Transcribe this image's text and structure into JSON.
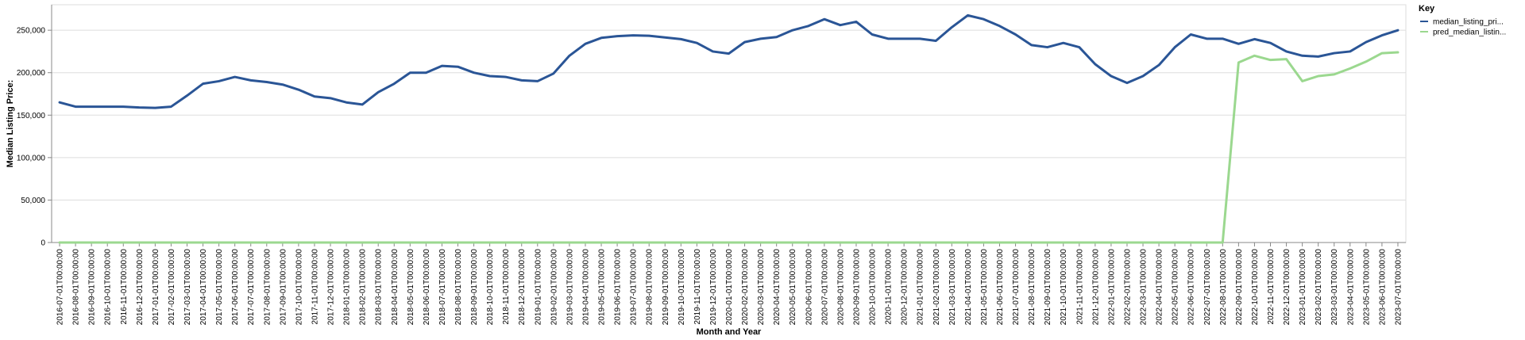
{
  "chart_data": {
    "type": "line",
    "xlabel": "Month and Year",
    "ylabel": "Median Listing Price:",
    "ylim": [
      0,
      280000
    ],
    "yticks": [
      0,
      50000,
      100000,
      150000,
      200000,
      250000
    ],
    "ytick_labels": [
      "0",
      "50,000",
      "100,000",
      "150,000",
      "200,000",
      "250,000"
    ],
    "grid": true,
    "legend": {
      "title": "Key",
      "position": "top-right"
    },
    "x": [
      "2016-07-01T00:00:00",
      "2016-08-01T00:00:00",
      "2016-09-01T00:00:00",
      "2016-10-01T00:00:00",
      "2016-11-01T00:00:00",
      "2016-12-01T00:00:00",
      "2017-01-01T00:00:00",
      "2017-02-01T00:00:00",
      "2017-03-01T00:00:00",
      "2017-04-01T00:00:00",
      "2017-05-01T00:00:00",
      "2017-06-01T00:00:00",
      "2017-07-01T00:00:00",
      "2017-08-01T00:00:00",
      "2017-09-01T00:00:00",
      "2017-10-01T00:00:00",
      "2017-11-01T00:00:00",
      "2017-12-01T00:00:00",
      "2018-01-01T00:00:00",
      "2018-02-01T00:00:00",
      "2018-03-01T00:00:00",
      "2018-04-01T00:00:00",
      "2018-05-01T00:00:00",
      "2018-06-01T00:00:00",
      "2018-07-01T00:00:00",
      "2018-08-01T00:00:00",
      "2018-09-01T00:00:00",
      "2018-10-01T00:00:00",
      "2018-11-01T00:00:00",
      "2018-12-01T00:00:00",
      "2019-01-01T00:00:00",
      "2019-02-01T00:00:00",
      "2019-03-01T00:00:00",
      "2019-04-01T00:00:00",
      "2019-05-01T00:00:00",
      "2019-06-01T00:00:00",
      "2019-07-01T00:00:00",
      "2019-08-01T00:00:00",
      "2019-09-01T00:00:00",
      "2019-10-01T00:00:00",
      "2019-11-01T00:00:00",
      "2019-12-01T00:00:00",
      "2020-01-01T00:00:00",
      "2020-02-01T00:00:00",
      "2020-03-01T00:00:00",
      "2020-04-01T00:00:00",
      "2020-05-01T00:00:00",
      "2020-06-01T00:00:00",
      "2020-07-01T00:00:00",
      "2020-08-01T00:00:00",
      "2020-09-01T00:00:00",
      "2020-10-01T00:00:00",
      "2020-11-01T00:00:00",
      "2020-12-01T00:00:00",
      "2021-01-01T00:00:00",
      "2021-02-01T00:00:00",
      "2021-03-01T00:00:00",
      "2021-04-01T00:00:00",
      "2021-05-01T00:00:00",
      "2021-06-01T00:00:00",
      "2021-07-01T00:00:00",
      "2021-08-01T00:00:00",
      "2021-09-01T00:00:00",
      "2021-10-01T00:00:00",
      "2021-11-01T00:00:00",
      "2021-12-01T00:00:00",
      "2022-01-01T00:00:00",
      "2022-02-01T00:00:00",
      "2022-03-01T00:00:00",
      "2022-04-01T00:00:00",
      "2022-05-01T00:00:00",
      "2022-06-01T00:00:00",
      "2022-07-01T00:00:00",
      "2022-08-01T00:00:00",
      "2022-09-01T00:00:00",
      "2022-10-01T00:00:00",
      "2022-11-01T00:00:00",
      "2022-12-01T00:00:00",
      "2023-01-01T00:00:00",
      "2023-02-01T00:00:00",
      "2023-03-01T00:00:00",
      "2023-04-01T00:00:00",
      "2023-05-01T00:00:00",
      "2023-06-01T00:00:00",
      "2023-07-01T00:00:00"
    ],
    "series": [
      {
        "name": "median_listing_pri...",
        "color": "#2a5596",
        "values": [
          165000,
          160000,
          160000,
          160000,
          160000,
          159000,
          158500,
          160000,
          173000,
          187000,
          190000,
          195000,
          191000,
          189000,
          186000,
          180000,
          172000,
          170000,
          165000,
          162500,
          177000,
          187000,
          200000,
          200000,
          208000,
          207000,
          200000,
          196000,
          195000,
          191000,
          190000,
          199000,
          220000,
          234000,
          241000,
          243000,
          244000,
          243500,
          241500,
          239500,
          235000,
          225000,
          222500,
          236000,
          240000,
          242000,
          250000,
          255000,
          263000,
          256000,
          260000,
          245000,
          240000,
          240000,
          240000,
          237500,
          253500,
          267500,
          263000,
          255000,
          245000,
          232500,
          230000,
          235000,
          230000,
          210000,
          196000,
          188000,
          196000,
          209000,
          230000,
          245000,
          240000,
          240000,
          234000,
          239500,
          235000,
          225000,
          220000,
          219000,
          223000,
          225000,
          236000,
          244000,
          250000
        ]
      },
      {
        "name": "pred_median_listin...",
        "color": "#9bd88f",
        "values": [
          0,
          0,
          0,
          0,
          0,
          0,
          0,
          0,
          0,
          0,
          0,
          0,
          0,
          0,
          0,
          0,
          0,
          0,
          0,
          0,
          0,
          0,
          0,
          0,
          0,
          0,
          0,
          0,
          0,
          0,
          0,
          0,
          0,
          0,
          0,
          0,
          0,
          0,
          0,
          0,
          0,
          0,
          0,
          0,
          0,
          0,
          0,
          0,
          0,
          0,
          0,
          0,
          0,
          0,
          0,
          0,
          0,
          0,
          0,
          0,
          0,
          0,
          0,
          0,
          0,
          0,
          0,
          0,
          0,
          0,
          0,
          0,
          0,
          0,
          212000,
          220000,
          215000,
          216000,
          190000,
          196000,
          198000,
          205000,
          213000,
          223000,
          224000
        ]
      }
    ]
  }
}
